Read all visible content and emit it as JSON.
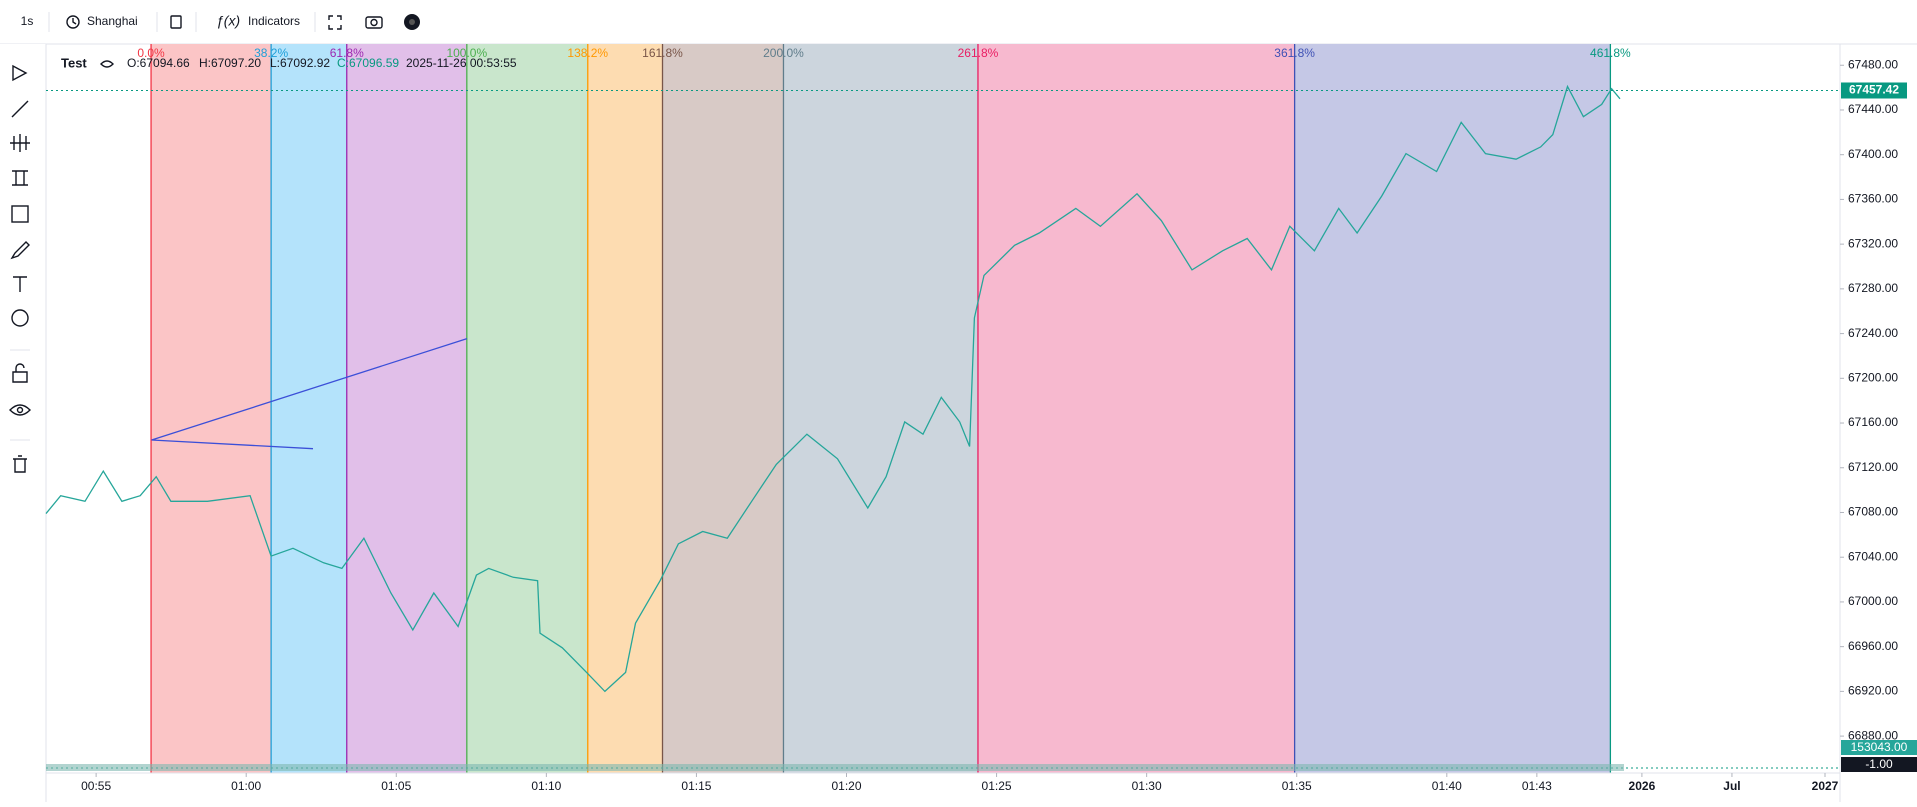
{
  "toolbar": {
    "interval": "1s",
    "timezone": "Shanghai",
    "indicators": "Indicators"
  },
  "legend": {
    "symbol": "Test",
    "open": "O:67094.66",
    "high": "H:67097.20",
    "low": "L:67092.92",
    "close": "C:67096.59",
    "time": "2025-11-26 00:53:55"
  },
  "chart_data": {
    "type": "line",
    "x": [
      53.33,
      53.82,
      54.63,
      55.24,
      55.86,
      56.47,
      57.0,
      57.49,
      58.71,
      60.13,
      60.83,
      61.56,
      62.58,
      63.19,
      63.92,
      64.82,
      65.55,
      66.25,
      67.06,
      67.67,
      68.08,
      68.9,
      69.71,
      69.79,
      70.53,
      71.34,
      71.95,
      72.64,
      72.97,
      73.79,
      74.4,
      75.21,
      76.03,
      76.84,
      77.66,
      78.68,
      79.7,
      80.71,
      81.32,
      81.94,
      82.55,
      83.16,
      83.77,
      84.1,
      84.26,
      84.58,
      85.6,
      86.42,
      87.64,
      88.46,
      89.68,
      90.49,
      91.51,
      92.53,
      93.35,
      94.16,
      94.77,
      95.59,
      96.4,
      97.01,
      97.83,
      98.64,
      99.66,
      100.48,
      101.29,
      102.31,
      103.13,
      103.53,
      104.02,
      104.55,
      105.16,
      105.49,
      105.77
    ],
    "series": [
      {
        "color": "#26a69a",
        "values": [
          67079,
          67095,
          67090,
          67117,
          67090,
          67095,
          67112,
          67090,
          67090,
          67095,
          67041,
          67048,
          67035,
          67030,
          67057,
          67008,
          66975,
          67008,
          66978,
          67024,
          67030,
          67022,
          67019,
          66972,
          66959,
          66937,
          66920,
          66937,
          66981,
          67019,
          67052,
          67063,
          67057,
          67090,
          67123,
          67150,
          67128,
          67084,
          67112,
          67161,
          67150,
          67183,
          67161,
          67139,
          67254,
          67292,
          67319,
          67330,
          67352,
          67336,
          67365,
          67341,
          67297,
          67314,
          67325,
          67297,
          67336,
          67314,
          67352,
          67330,
          67363,
          67401,
          67385,
          67429,
          67401,
          67396,
          67407,
          67418,
          67461,
          67434,
          67445,
          67459,
          67450
        ]
      }
    ],
    "xlim": [
      53.33,
      113.1
    ],
    "xticks": [
      {
        "value": 55,
        "label": "00:55"
      },
      {
        "value": 60,
        "label": "01:00"
      },
      {
        "value": 65,
        "label": "01:05"
      },
      {
        "value": 70,
        "label": "01:10"
      },
      {
        "value": 75,
        "label": "01:15"
      },
      {
        "value": 80,
        "label": "01:20"
      },
      {
        "value": 85,
        "label": "01:25"
      },
      {
        "value": 90,
        "label": "01:30"
      },
      {
        "value": 95,
        "label": "01:35"
      },
      {
        "value": 100,
        "label": "01:40"
      },
      {
        "value": 103,
        "label": "01:43"
      },
      {
        "value": 106.5,
        "label": "2026"
      },
      {
        "value": 109.5,
        "label": "Jul"
      },
      {
        "value": 112.6,
        "label": "2027"
      }
    ],
    "ylim": [
      66847,
      67499
    ],
    "yticks": [
      {
        "value": 67480,
        "label": "67480.00"
      },
      {
        "value": 67440,
        "label": "67440.00"
      },
      {
        "value": 67400,
        "label": "67400.00"
      },
      {
        "value": 67360,
        "label": "67360.00"
      },
      {
        "value": 67320,
        "label": "67320.00"
      },
      {
        "value": 67280,
        "label": "67280.00"
      },
      {
        "value": 67240,
        "label": "67240.00"
      },
      {
        "value": 67200,
        "label": "67200.00"
      },
      {
        "value": 67160,
        "label": "67160.00"
      },
      {
        "value": 67120,
        "label": "67120.00"
      },
      {
        "value": 67080,
        "label": "67080.00"
      },
      {
        "value": 67040,
        "label": "67040.00"
      },
      {
        "value": 67000,
        "label": "67000.00"
      },
      {
        "value": 66960,
        "label": "66960.00"
      },
      {
        "value": 66920,
        "label": "66920.00"
      },
      {
        "value": 66880,
        "label": "66880.00"
      }
    ],
    "fib_levels": [
      {
        "label": "0.0%",
        "x": 56.83,
        "color": "#f23645",
        "band": "#fbc5c6"
      },
      {
        "label": "38.2%",
        "x": 60.83,
        "color": "#1e9fd8",
        "band": "#b4e3fb"
      },
      {
        "label": "61.8%",
        "x": 63.35,
        "color": "#9c27b0",
        "band": "#e1bfe9"
      },
      {
        "label": "100.0%",
        "x": 67.35,
        "color": "#4caf50",
        "band": "#c9e6cc"
      },
      {
        "label": "138.2%",
        "x": 71.38,
        "color": "#ff9800",
        "band": "#fddcb1"
      },
      {
        "label": "161.8%",
        "x": 73.87,
        "color": "#795548",
        "band": "#d8cac6"
      },
      {
        "label": "200.0%",
        "x": 77.9,
        "color": "#607d8b",
        "band": "#ccd5dd"
      },
      {
        "label": "261.8%",
        "x": 84.38,
        "color": "#e91e63",
        "band": "#f7b9cf"
      },
      {
        "label": "361.8%",
        "x": 94.93,
        "color": "#3f51b5",
        "band": "#c5c8e6"
      },
      {
        "label": "461.8%",
        "x": 105.45,
        "color": "#089981",
        "band": "#c5c8e6"
      }
    ],
    "last_price": {
      "value": 67457.42,
      "label": "67457.42",
      "color": "#089981"
    },
    "volume_label": "153043.00",
    "volume_min_label": "-1.00"
  }
}
